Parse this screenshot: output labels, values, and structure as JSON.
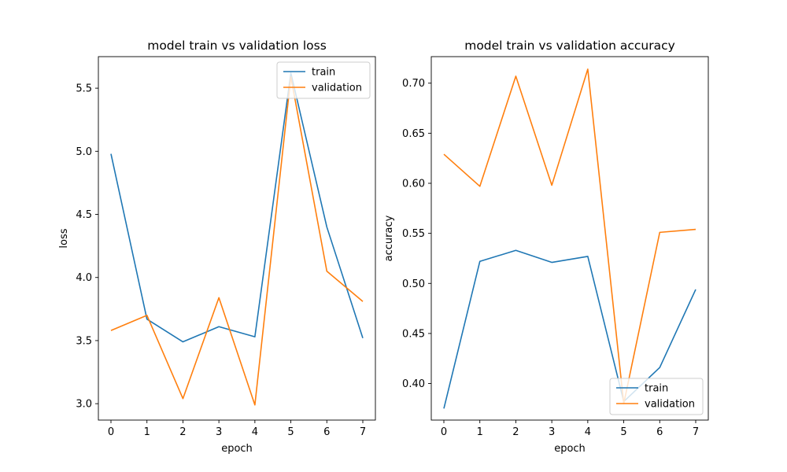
{
  "chart_data": [
    {
      "type": "line",
      "title": "model train vs validation loss",
      "xlabel": "epoch",
      "ylabel": "loss",
      "x": [
        0,
        1,
        2,
        3,
        4,
        5,
        6,
        7
      ],
      "xlim": [
        -0.35,
        7.35
      ],
      "ylim": [
        2.87,
        5.75
      ],
      "xticks": [
        0,
        1,
        2,
        3,
        4,
        5,
        6,
        7
      ],
      "yticks": [
        3.0,
        3.5,
        4.0,
        4.5,
        5.0,
        5.5
      ],
      "ytick_labels": [
        "3.0",
        "3.5",
        "4.0",
        "4.5",
        "5.0",
        "5.5"
      ],
      "legend_position": "top-right",
      "grid": false,
      "series": [
        {
          "name": "train",
          "color": "#1f77b4",
          "values": [
            4.98,
            3.67,
            3.49,
            3.61,
            3.53,
            5.62,
            4.4,
            3.52
          ]
        },
        {
          "name": "validation",
          "color": "#ff7f0e",
          "values": [
            3.58,
            3.7,
            3.04,
            3.84,
            2.99,
            5.59,
            4.05,
            3.81
          ]
        }
      ]
    },
    {
      "type": "line",
      "title": "model train vs validation accuracy",
      "xlabel": "epoch",
      "ylabel": "accuracy",
      "x": [
        0,
        1,
        2,
        3,
        4,
        5,
        6,
        7
      ],
      "xlim": [
        -0.35,
        7.35
      ],
      "ylim": [
        0.3635,
        0.7265
      ],
      "xticks": [
        0,
        1,
        2,
        3,
        4,
        5,
        6,
        7
      ],
      "yticks": [
        0.4,
        0.45,
        0.5,
        0.55,
        0.6,
        0.65,
        0.7
      ],
      "ytick_labels": [
        "0.40",
        "0.45",
        "0.50",
        "0.55",
        "0.60",
        "0.65",
        "0.70"
      ],
      "legend_position": "bottom-right",
      "grid": false,
      "series": [
        {
          "name": "train",
          "color": "#1f77b4",
          "values": [
            0.375,
            0.522,
            0.533,
            0.521,
            0.527,
            0.382,
            0.416,
            0.494
          ]
        },
        {
          "name": "validation",
          "color": "#ff7f0e",
          "values": [
            0.629,
            0.597,
            0.707,
            0.598,
            0.714,
            0.38,
            0.551,
            0.554
          ]
        }
      ]
    }
  ]
}
